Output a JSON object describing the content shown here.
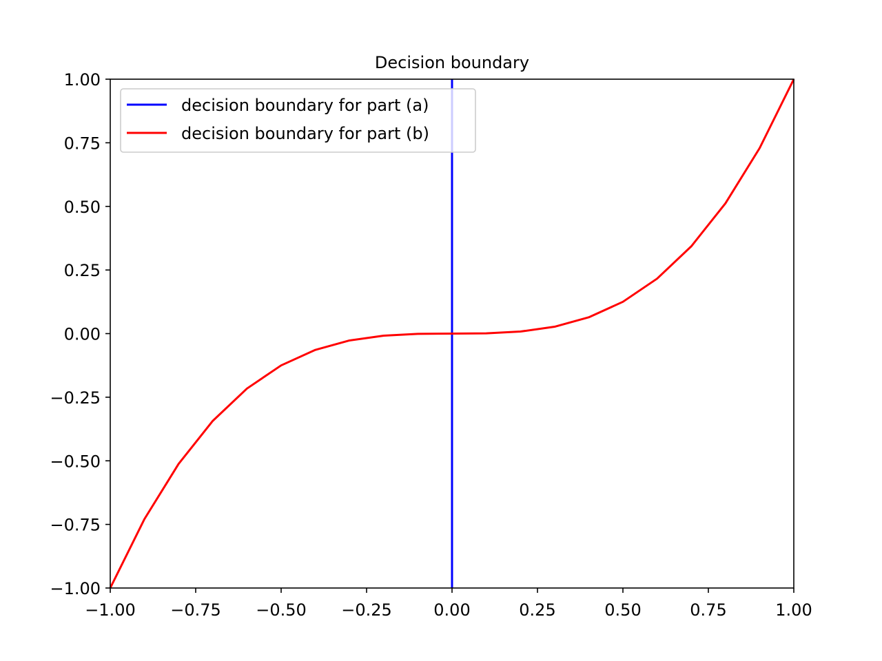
{
  "chart_data": {
    "type": "line",
    "title": "Decision boundary",
    "xlabel": "",
    "ylabel": "",
    "xlim": [
      -1.0,
      1.0
    ],
    "ylim": [
      -1.0,
      1.0
    ],
    "xticks": [
      -1.0,
      -0.75,
      -0.5,
      -0.25,
      0.0,
      0.25,
      0.5,
      0.75,
      1.0
    ],
    "yticks": [
      -1.0,
      -0.75,
      -0.5,
      -0.25,
      0.0,
      0.25,
      0.5,
      0.75,
      1.0
    ],
    "xtick_labels": [
      "−1.00",
      "−0.75",
      "−0.50",
      "−0.25",
      "0.00",
      "0.25",
      "0.50",
      "0.75",
      "1.00"
    ],
    "ytick_labels": [
      "−1.00",
      "−0.75",
      "−0.50",
      "−0.25",
      "0.00",
      "0.25",
      "0.50",
      "0.75",
      "1.00"
    ],
    "grid": false,
    "legend_position": "upper-left",
    "series": [
      {
        "name": "decision boundary for part (a)",
        "color": "#0000ff",
        "x": [
          0.0,
          0.0
        ],
        "y": [
          -1.0,
          1.0
        ]
      },
      {
        "name": "decision boundary for part (b)",
        "color": "#ff0000",
        "x": [
          -1.0,
          -0.9,
          -0.8,
          -0.7,
          -0.6,
          -0.5,
          -0.4,
          -0.3,
          -0.2,
          -0.1,
          0.0,
          0.1,
          0.2,
          0.3,
          0.4,
          0.5,
          0.6,
          0.7,
          0.8,
          0.9,
          1.0
        ],
        "y": [
          -1.0,
          -0.729,
          -0.512,
          -0.343,
          -0.216,
          -0.125,
          -0.064,
          -0.027,
          -0.008,
          -0.001,
          0.0,
          0.001,
          0.008,
          0.027,
          0.064,
          0.125,
          0.216,
          0.343,
          0.512,
          0.729,
          1.0
        ]
      }
    ]
  }
}
